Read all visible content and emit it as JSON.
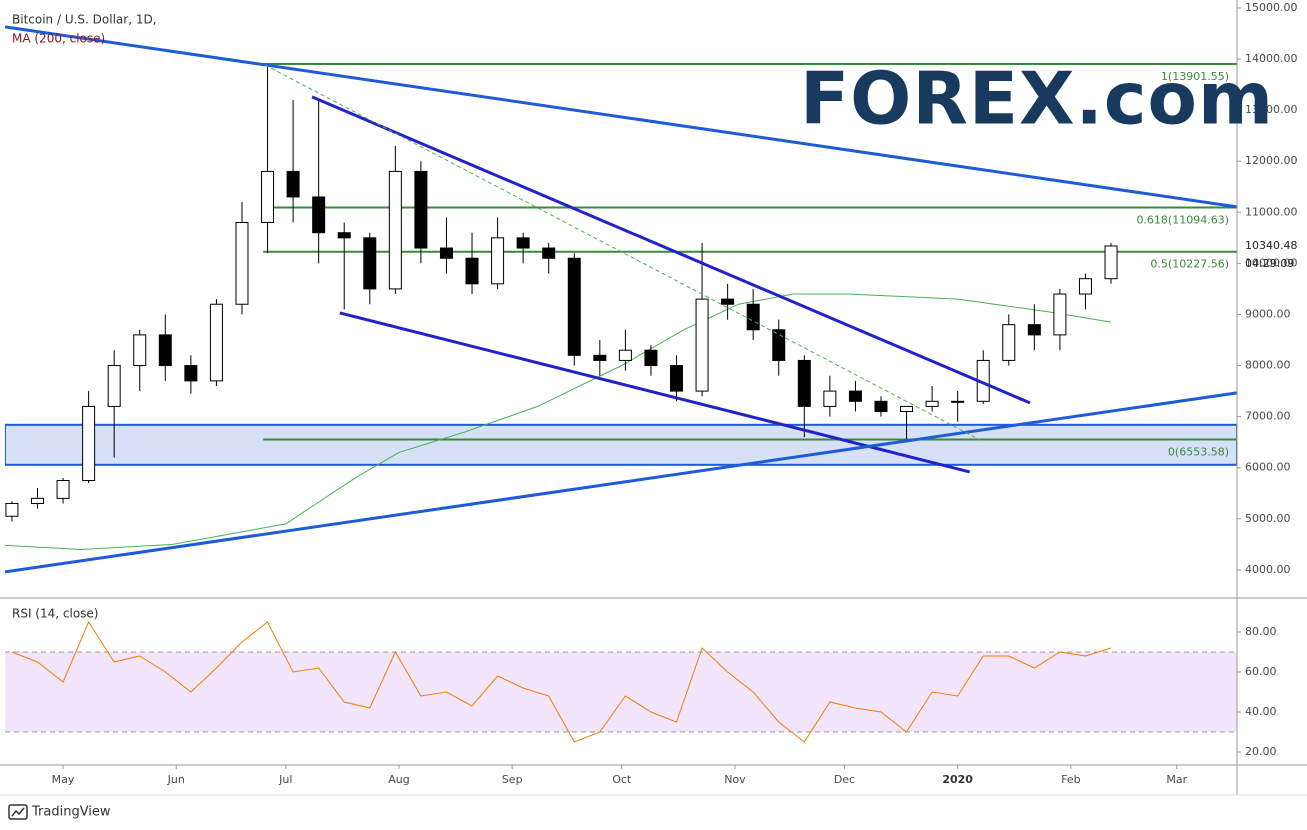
{
  "chart_data": [
    {
      "type": "candlestick",
      "title": "Bitcoin / U.S. Dollar, 1D,",
      "subtitle": "MA (200, close)",
      "x": [
        -14,
        -7,
        0,
        7,
        14,
        21,
        28,
        35,
        42,
        49,
        56,
        63,
        70,
        77,
        84,
        91,
        98,
        105,
        112,
        119,
        126,
        133,
        140,
        147,
        154,
        161,
        168,
        175,
        182,
        189,
        196,
        203,
        210,
        217,
        224,
        231,
        238,
        245,
        252,
        259,
        266,
        273,
        280,
        287
      ],
      "open": [
        5050,
        5300,
        5400,
        5750,
        7200,
        8000,
        8600,
        8000,
        7700,
        9200,
        10800,
        11800,
        11300,
        10600,
        10500,
        9500,
        11800,
        10300,
        10100,
        9600,
        10500,
        10300,
        10100,
        8200,
        8100,
        8300,
        8000,
        7500,
        9300,
        9200,
        8700,
        8100,
        7200,
        7500,
        7300,
        7100,
        7200,
        7300,
        7300,
        8100,
        8800,
        8600,
        9400,
        9700
      ],
      "high": [
        5350,
        5600,
        5800,
        7500,
        8300,
        8700,
        9000,
        8200,
        9300,
        11200,
        13900,
        13200,
        13200,
        10800,
        10600,
        12300,
        12000,
        10900,
        10600,
        10900,
        10600,
        10400,
        10200,
        8500,
        8700,
        8400,
        8200,
        10400,
        9600,
        9500,
        8900,
        8200,
        7800,
        7700,
        7400,
        7200,
        7600,
        7500,
        8300,
        9000,
        9200,
        9500,
        9800,
        10400
      ],
      "low": [
        4950,
        5200,
        5300,
        5700,
        6200,
        7500,
        7700,
        7450,
        7600,
        9000,
        10200,
        10800,
        10000,
        9100,
        9200,
        9400,
        10000,
        9800,
        9400,
        9500,
        10000,
        9800,
        8000,
        7800,
        7900,
        7800,
        7300,
        7400,
        8900,
        8500,
        7800,
        6600,
        7000,
        7100,
        7000,
        6500,
        7100,
        6900,
        7250,
        8000,
        8300,
        8300,
        9100,
        9600
      ],
      "close": [
        5300,
        5400,
        5750,
        7200,
        8000,
        8600,
        8000,
        7700,
        9200,
        10800,
        11800,
        11300,
        10600,
        10500,
        9500,
        11800,
        10300,
        10100,
        9600,
        10500,
        10300,
        10100,
        8200,
        8100,
        8300,
        8000,
        7500,
        9300,
        9200,
        8700,
        8100,
        7200,
        7500,
        7300,
        7100,
        7200,
        7300,
        7300,
        8100,
        8800,
        8600,
        9400,
        9700,
        10340
      ],
      "up_color": "#ffffff",
      "down_color": "#000000",
      "wick_color": "#000000",
      "ma": {
        "color": "#4caf50",
        "x": [
          -16,
          5,
          30,
          61,
          80,
          92,
          110,
          130,
          153,
          170,
          185,
          200,
          215,
          245,
          270,
          287
        ],
        "values": [
          4480,
          4400,
          4500,
          4900,
          5800,
          6300,
          6700,
          7200,
          8000,
          8700,
          9200,
          9400,
          9400,
          9300,
          9050,
          8850
        ]
      },
      "trendlines": [
        {
          "color": "#1e5bd6",
          "x": [
            -15.9,
            321.5
          ],
          "values": [
            14628,
            11105
          ]
        },
        {
          "color": "#2222cc",
          "x": [
            68.2,
            264.8
          ],
          "values": [
            13258,
            7269
          ]
        },
        {
          "color": "#2222cc",
          "x": [
            75.8,
            248.3
          ],
          "values": [
            9030,
            5918
          ]
        },
        {
          "color": "#1e5bd6",
          "x": [
            -15.9,
            321.5
          ],
          "values": [
            3961,
            7464
          ]
        },
        {
          "color": "#4caf50",
          "dashed": true,
          "x": [
            55.3,
            251.1
          ],
          "values": [
            13884,
            6544
          ]
        }
      ],
      "zone": {
        "color": "#1e5bd6",
        "values": [
          6057,
          6840
        ]
      },
      "fib": {
        "color": "#3a8a3a",
        "x_start": 54.8,
        "levels": [
          {
            "value": 13901.55,
            "label": "1(13901.55)"
          },
          {
            "value": 11094.63,
            "label": "0.618(11094.63)"
          },
          {
            "value": 10227.56,
            "label": "0.5(10227.56)"
          },
          {
            "value": 6553.58,
            "label": "0(6553.58)"
          }
        ]
      },
      "last_price": {
        "value": 10340.48,
        "label": "10340.48"
      },
      "countdown": "04:29:09",
      "xlim": [
        -15.9,
        321.5
      ],
      "xticks": [
        {
          "value": 0,
          "label": "May"
        },
        {
          "value": 31,
          "label": "Jun"
        },
        {
          "value": 61,
          "label": "Jul"
        },
        {
          "value": 92,
          "label": "Aug"
        },
        {
          "value": 123,
          "label": "Sep"
        },
        {
          "value": 153,
          "label": "Oct"
        },
        {
          "value": 184,
          "label": "Nov"
        },
        {
          "value": 214,
          "label": "Dec"
        },
        {
          "value": 245,
          "label": "2020",
          "bold": true
        },
        {
          "value": 276,
          "label": "Feb"
        },
        {
          "value": 305,
          "label": "Mar"
        }
      ],
      "ylim": [
        3450,
        15155
      ],
      "yticks": [
        {
          "value": 4000,
          "label": "4000.00"
        },
        {
          "value": 5000,
          "label": "5000.00"
        },
        {
          "value": 6000,
          "label": "6000.00"
        },
        {
          "value": 7000,
          "label": "7000.00"
        },
        {
          "value": 8000,
          "label": "8000.00"
        },
        {
          "value": 9000,
          "label": "9000.00"
        },
        {
          "value": 10000,
          "label": "10000.00"
        },
        {
          "value": 11000,
          "label": "11000.00"
        },
        {
          "value": 12000,
          "label": "12000.00"
        },
        {
          "value": 13000,
          "label": "13000.00"
        },
        {
          "value": 14000,
          "label": "14000.00"
        },
        {
          "value": 15000,
          "label": "15000.00"
        }
      ],
      "grid": false
    },
    {
      "type": "line",
      "title": "RSI (14, close)",
      "color": "#f57c00",
      "x": [
        -14,
        -7,
        0,
        7,
        14,
        21,
        28,
        35,
        42,
        49,
        56,
        63,
        70,
        77,
        84,
        91,
        98,
        105,
        112,
        119,
        126,
        133,
        140,
        147,
        154,
        161,
        168,
        175,
        182,
        189,
        196,
        203,
        210,
        217,
        224,
        231,
        238,
        245,
        252,
        259,
        266,
        273,
        280,
        287
      ],
      "values": [
        70,
        65,
        55,
        85,
        65,
        68,
        60,
        50,
        62,
        75,
        85,
        60,
        62,
        45,
        42,
        70,
        48,
        50,
        43,
        58,
        52,
        48,
        25,
        30,
        48,
        40,
        35,
        72,
        60,
        50,
        35,
        25,
        45,
        42,
        40,
        30,
        50,
        48,
        68,
        68,
        62,
        70,
        68,
        72
      ],
      "band": [
        30,
        70
      ],
      "band_color": "#f3e5fb",
      "ylim": [
        13.5,
        96
      ],
      "yticks": [
        {
          "value": 20,
          "label": "20.00"
        },
        {
          "value": 40,
          "label": "40.00"
        },
        {
          "value": 60,
          "label": "60.00"
        },
        {
          "value": 80,
          "label": "80.00"
        }
      ]
    }
  ],
  "logo": "FOREX.com",
  "footer": "TradingView"
}
